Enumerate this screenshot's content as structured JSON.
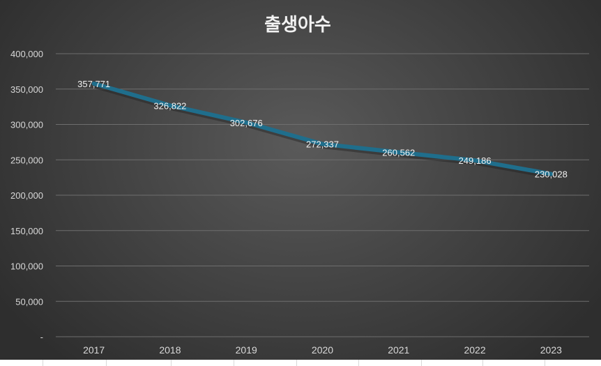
{
  "chart_data": {
    "type": "line",
    "title": "출생아수",
    "xlabel": "",
    "ylabel": "",
    "categories": [
      "2017",
      "2018",
      "2019",
      "2020",
      "2021",
      "2022",
      "2023"
    ],
    "series": [
      {
        "name": "출생아수",
        "values": [
          357771,
          326822,
          302676,
          272337,
          260562,
          249186,
          230028
        ],
        "color": "#1f6e8c"
      }
    ],
    "data_labels": [
      "357,771",
      "326,822",
      "302,676",
      "272,337",
      "260,562",
      "249,186",
      "230,028"
    ],
    "ylim": [
      0,
      400000
    ],
    "yticks": [
      0,
      50000,
      100000,
      150000,
      200000,
      250000,
      300000,
      350000,
      400000
    ],
    "ytick_labels": [
      "-",
      "50,000",
      "100,000",
      "150,000",
      "200,000",
      "250,000",
      "300,000",
      "350,000",
      "400,000"
    ],
    "grid": true,
    "legend": "none",
    "background": "dark gradient"
  }
}
